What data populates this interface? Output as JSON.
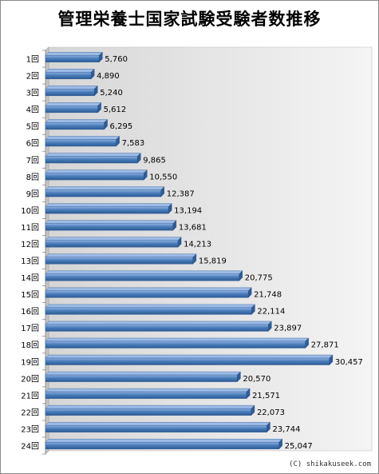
{
  "chart_data": {
    "type": "bar",
    "orientation": "horizontal",
    "title": "管理栄養士国家試験受験者数推移",
    "categories": [
      "1回",
      "2回",
      "3回",
      "4回",
      "5回",
      "6回",
      "7回",
      "8回",
      "9回",
      "10回",
      "11回",
      "12回",
      "13回",
      "14回",
      "15回",
      "16回",
      "17回",
      "18回",
      "19回",
      "20回",
      "21回",
      "22回",
      "23回",
      "24回"
    ],
    "values": [
      5760,
      4890,
      5240,
      5612,
      6295,
      7583,
      9865,
      10550,
      12387,
      13194,
      13681,
      14213,
      15819,
      20775,
      21748,
      22114,
      23897,
      27871,
      30457,
      20570,
      21571,
      22073,
      23744,
      25047
    ],
    "value_labels": [
      "5,760",
      "4,890",
      "5,240",
      "5,612",
      "6,295",
      "7,583",
      "9,865",
      "10,550",
      "12,387",
      "13,194",
      "13,681",
      "14,213",
      "15,819",
      "20,775",
      "21,748",
      "22,114",
      "23,897",
      "27,871",
      "30,457",
      "20,570",
      "21,571",
      "22,073",
      "23,744",
      "25,047"
    ],
    "xlabel": "",
    "ylabel": "",
    "xlim": [
      0,
      35000
    ],
    "grid": false,
    "legend": "none",
    "bar_color": "#4a7ebb"
  },
  "credit": "(C) shikakuseek.com"
}
